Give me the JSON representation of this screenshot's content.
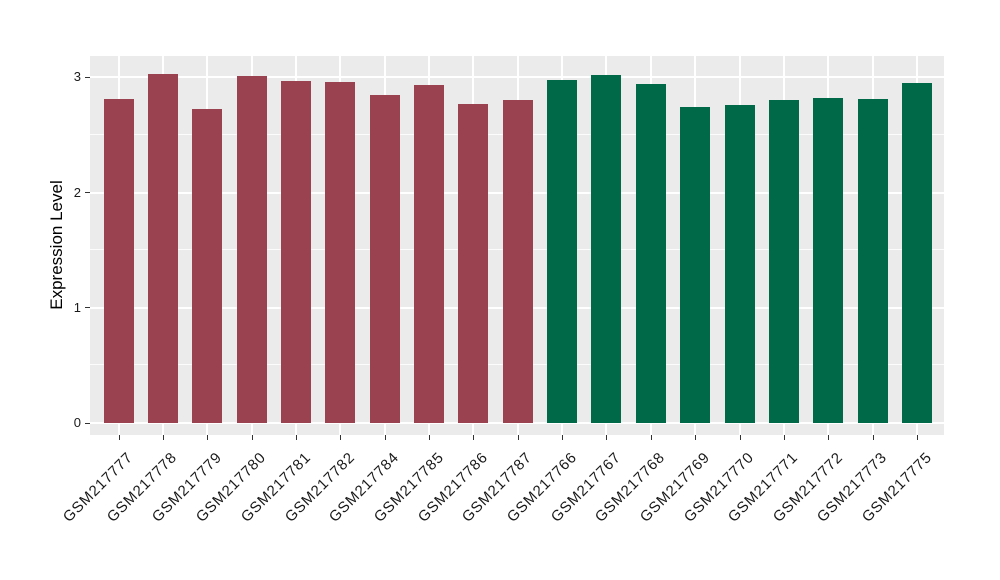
{
  "chart_data": {
    "type": "bar",
    "title": "",
    "xlabel": "",
    "ylabel": "Expression Level",
    "ylim": [
      0,
      3.2
    ],
    "yticks": [
      0,
      1,
      2,
      3
    ],
    "minor_gridlines": [
      0.5,
      1.5,
      2.5
    ],
    "grid": "on",
    "legend_position": "none",
    "panel_bg": "#EBEBEB",
    "gridline_color": "#FFFFFF",
    "tick_color": "#333333",
    "groups": [
      {
        "name": "group-1",
        "color": "#9A424F"
      },
      {
        "name": "group-2",
        "color": "#006947"
      }
    ],
    "bars": [
      {
        "label": "GSM217777",
        "value": 2.81,
        "group": 0
      },
      {
        "label": "GSM217778",
        "value": 3.03,
        "group": 0
      },
      {
        "label": "GSM217779",
        "value": 2.73,
        "group": 0
      },
      {
        "label": "GSM217780",
        "value": 3.01,
        "group": 0
      },
      {
        "label": "GSM217781",
        "value": 2.97,
        "group": 0
      },
      {
        "label": "GSM217782",
        "value": 2.96,
        "group": 0
      },
      {
        "label": "GSM217784",
        "value": 2.85,
        "group": 0
      },
      {
        "label": "GSM217785",
        "value": 2.93,
        "group": 0
      },
      {
        "label": "GSM217786",
        "value": 2.77,
        "group": 0
      },
      {
        "label": "GSM217787",
        "value": 2.8,
        "group": 0
      },
      {
        "label": "GSM217766",
        "value": 2.98,
        "group": 1
      },
      {
        "label": "GSM217767",
        "value": 3.02,
        "group": 1
      },
      {
        "label": "GSM217768",
        "value": 2.94,
        "group": 1
      },
      {
        "label": "GSM217769",
        "value": 2.74,
        "group": 1
      },
      {
        "label": "GSM217770",
        "value": 2.76,
        "group": 1
      },
      {
        "label": "GSM217771",
        "value": 2.8,
        "group": 1
      },
      {
        "label": "GSM217772",
        "value": 2.82,
        "group": 1
      },
      {
        "label": "GSM217773",
        "value": 2.81,
        "group": 1
      },
      {
        "label": "GSM217775",
        "value": 2.95,
        "group": 1
      }
    ]
  }
}
